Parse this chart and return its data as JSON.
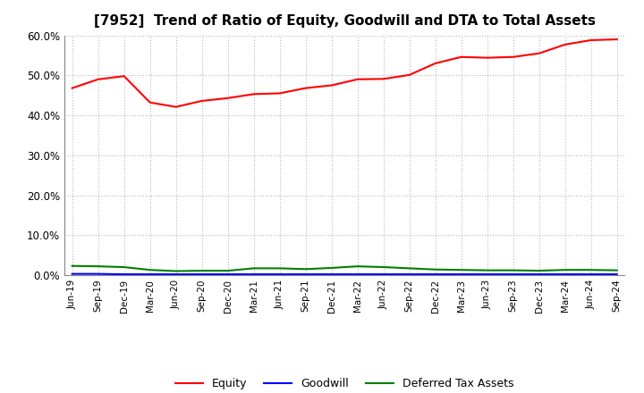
{
  "title": "[7952]  Trend of Ratio of Equity, Goodwill and DTA to Total Assets",
  "xlabels": [
    "Jun-19",
    "Sep-19",
    "Dec-19",
    "Mar-20",
    "Jun-20",
    "Sep-20",
    "Dec-20",
    "Mar-21",
    "Jun-21",
    "Sep-21",
    "Dec-21",
    "Mar-22",
    "Jun-22",
    "Sep-22",
    "Dec-22",
    "Mar-23",
    "Jun-23",
    "Sep-23",
    "Dec-23",
    "Mar-24",
    "Jun-24",
    "Sep-24"
  ],
  "equity": [
    0.468,
    0.49,
    0.498,
    0.432,
    0.421,
    0.436,
    0.443,
    0.453,
    0.455,
    0.468,
    0.475,
    0.49,
    0.491,
    0.501,
    0.53,
    0.546,
    0.544,
    0.546,
    0.555,
    0.577,
    0.588,
    0.59
  ],
  "goodwill": [
    0.003,
    0.003,
    0.002,
    0.002,
    0.002,
    0.002,
    0.002,
    0.002,
    0.002,
    0.002,
    0.002,
    0.002,
    0.002,
    0.002,
    0.002,
    0.002,
    0.002,
    0.002,
    0.002,
    0.002,
    0.002,
    0.002
  ],
  "dta": [
    0.023,
    0.022,
    0.02,
    0.013,
    0.01,
    0.011,
    0.011,
    0.017,
    0.017,
    0.015,
    0.018,
    0.022,
    0.02,
    0.017,
    0.014,
    0.013,
    0.012,
    0.012,
    0.011,
    0.013,
    0.013,
    0.012
  ],
  "equity_color": "#FF0000",
  "goodwill_color": "#0000FF",
  "dta_color": "#008000",
  "ylim": [
    0.0,
    0.6
  ],
  "yticks": [
    0.0,
    0.1,
    0.2,
    0.3,
    0.4,
    0.5,
    0.6
  ],
  "bg_color": "#FFFFFF",
  "grid_color": "#AAAAAA",
  "title_fontsize": 11,
  "tick_fontsize": 7.5,
  "ytick_fontsize": 8.5
}
